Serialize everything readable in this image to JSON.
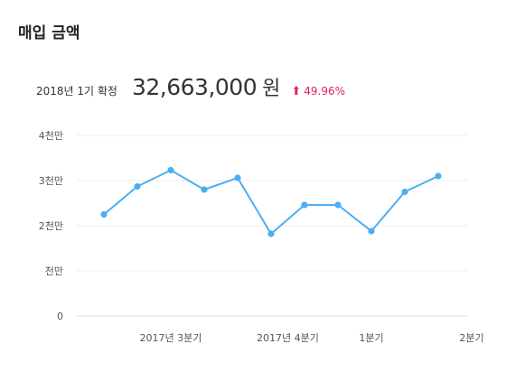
{
  "page": {
    "title": "매입 금액"
  },
  "summary": {
    "period": "2018년 1기 확정",
    "amount": "32,663,000",
    "unit": "원",
    "change": "49.96%",
    "change_color": "#e0245e"
  },
  "chart_data": {
    "type": "line",
    "title": "",
    "xlabel": "",
    "ylabel": "",
    "ylim": [
      0,
      40000000
    ],
    "y_ticks": [
      {
        "value": 0,
        "label": "0"
      },
      {
        "value": 10000000,
        "label": "천만"
      },
      {
        "value": 20000000,
        "label": "2천만"
      },
      {
        "value": 30000000,
        "label": "3천만"
      },
      {
        "value": 40000000,
        "label": "4천만"
      }
    ],
    "x_tick_labels": [
      {
        "index": 2,
        "label": "2017년 3분기"
      },
      {
        "index": 5.5,
        "label": "2017년 4분기"
      },
      {
        "index": 8,
        "label": "1분기"
      },
      {
        "index": 11,
        "label": "2분기"
      }
    ],
    "grid": true,
    "color": "#4aaff0",
    "series": [
      {
        "values": [
          22500000,
          28700000,
          32300000,
          28000000,
          30600000,
          18200000,
          24600000,
          24600000,
          18800000,
          27500000,
          31000000
        ]
      }
    ]
  }
}
